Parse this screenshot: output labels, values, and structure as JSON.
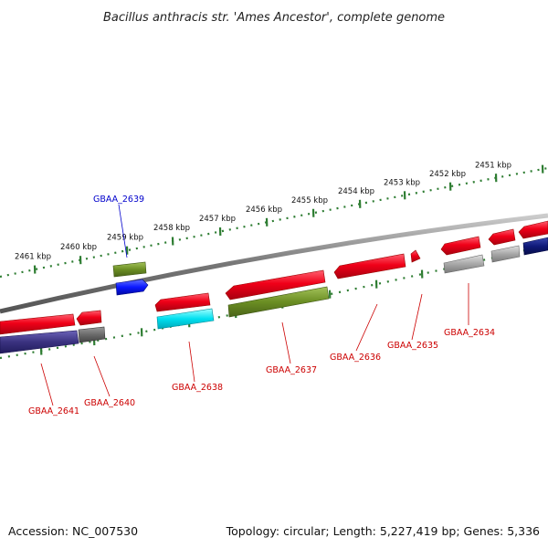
{
  "title": "Bacillus anthracis str. 'Ames Ancestor', complete genome",
  "footer": {
    "accession": "Accession: NC_007530",
    "summary": "Topology: circular; Length: 5,227,419 bp; Genes: 5,336"
  },
  "ticks": [
    "2461 kbp",
    "2460 kbp",
    "2459 kbp",
    "2458 kbp",
    "2457 kbp",
    "2456 kbp",
    "2455 kbp",
    "2454 kbp",
    "2453 kbp",
    "2452 kbp",
    "2451 kbp"
  ],
  "genes": [
    {
      "id": "GBAA_2639",
      "color": "#0000cc"
    },
    {
      "id": "GBAA_2641",
      "color": "#cc0000"
    },
    {
      "id": "GBAA_2640",
      "color": "#cc0000"
    },
    {
      "id": "GBAA_2638",
      "color": "#cc0000"
    },
    {
      "id": "GBAA_2637",
      "color": "#cc0000"
    },
    {
      "id": "GBAA_2636",
      "color": "#cc0000"
    },
    {
      "id": "GBAA_2635",
      "color": "#cc0000"
    },
    {
      "id": "GBAA_2634",
      "color": "#cc0000"
    }
  ],
  "colors": {
    "backbone": "#777777",
    "tick_outer": "#2e7d32",
    "tick_inner": "#2e7d32",
    "cds": "#e8001c",
    "green_feature": "#6b8e23",
    "cyan_feature": "#00d8e8",
    "navy_feature": "#3a3280",
    "grey_feature": "#a0a0a0",
    "blue_feature": "#0a18ff",
    "dark_navy": "#101a7a"
  }
}
